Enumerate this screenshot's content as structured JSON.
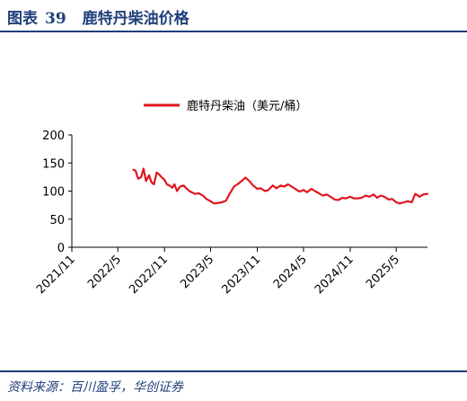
{
  "figure": {
    "label": "图表",
    "number": "39",
    "title": "鹿特丹柴油价格",
    "source": "资料来源：百川盈孚，华创证券"
  },
  "chart_data": {
    "type": "line",
    "title": "",
    "xlabel": "",
    "ylabel": "",
    "ylim": [
      0,
      200
    ],
    "yticks": [
      0,
      50,
      100,
      150,
      200
    ],
    "xticks": [
      "2021/11",
      "2022/5",
      "2022/11",
      "2023/5",
      "2023/11",
      "2024/5",
      "2024/11",
      "2025/5"
    ],
    "xrange": [
      "2021/11",
      "2025/9"
    ],
    "grid": false,
    "legend_position": "top-center",
    "series": [
      {
        "name": "鹿特丹柴油（美元/桶）",
        "color": "#e0161f",
        "x": [
          "2022/7/1",
          "2022/7/10",
          "2022/7/20",
          "2022/8/1",
          "2022/8/10",
          "2022/8/20",
          "2022/9/1",
          "2022/9/10",
          "2022/9/20",
          "2022/10/1",
          "2022/10/10",
          "2022/10/20",
          "2022/11/1",
          "2022/11/10",
          "2022/11/20",
          "2022/12/1",
          "2022/12/10",
          "2022/12/20",
          "2023/1/1",
          "2023/1/15",
          "2023/2/1",
          "2023/2/15",
          "2023/3/1",
          "2023/3/15",
          "2023/4/1",
          "2023/4/15",
          "2023/5/1",
          "2023/5/15",
          "2023/6/1",
          "2023/6/15",
          "2023/7/1",
          "2023/7/15",
          "2023/8/1",
          "2023/8/15",
          "2023/9/1",
          "2023/9/15",
          "2023/10/1",
          "2023/10/15",
          "2023/11/1",
          "2023/11/15",
          "2023/12/1",
          "2023/12/15",
          "2024/1/1",
          "2024/1/15",
          "2024/2/1",
          "2024/2/15",
          "2024/3/1",
          "2024/3/15",
          "2024/4/1",
          "2024/4/15",
          "2024/5/1",
          "2024/5/15",
          "2024/6/1",
          "2024/6/15",
          "2024/7/1",
          "2024/7/15",
          "2024/8/1",
          "2024/8/15",
          "2024/9/1",
          "2024/9/15",
          "2024/10/1",
          "2024/10/15",
          "2024/11/1",
          "2024/11/15",
          "2024/12/1",
          "2024/12/15",
          "2025/1/1",
          "2025/1/15",
          "2025/2/1",
          "2025/2/15",
          "2025/3/1",
          "2025/3/15",
          "2025/4/1",
          "2025/4/15",
          "2025/5/1",
          "2025/5/15",
          "2025/6/1",
          "2025/6/15",
          "2025/7/1",
          "2025/7/15",
          "2025/8/1",
          "2025/8/15",
          "2025/9/1"
        ],
        "values": [
          138,
          136,
          122,
          125,
          140,
          118,
          128,
          116,
          112,
          133,
          130,
          125,
          120,
          112,
          110,
          106,
          112,
          100,
          108,
          110,
          102,
          98,
          95,
          96,
          92,
          86,
          82,
          78,
          79,
          80,
          83,
          95,
          108,
          112,
          118,
          124,
          118,
          110,
          104,
          105,
          100,
          102,
          110,
          105,
          110,
          108,
          112,
          108,
          103,
          99,
          102,
          98,
          104,
          100,
          96,
          92,
          94,
          90,
          85,
          84,
          88,
          87,
          90,
          87,
          87,
          88,
          92,
          90,
          94,
          88,
          92,
          90,
          85,
          86,
          80,
          78,
          80,
          82,
          80,
          95,
          90,
          94,
          95
        ]
      }
    ]
  }
}
